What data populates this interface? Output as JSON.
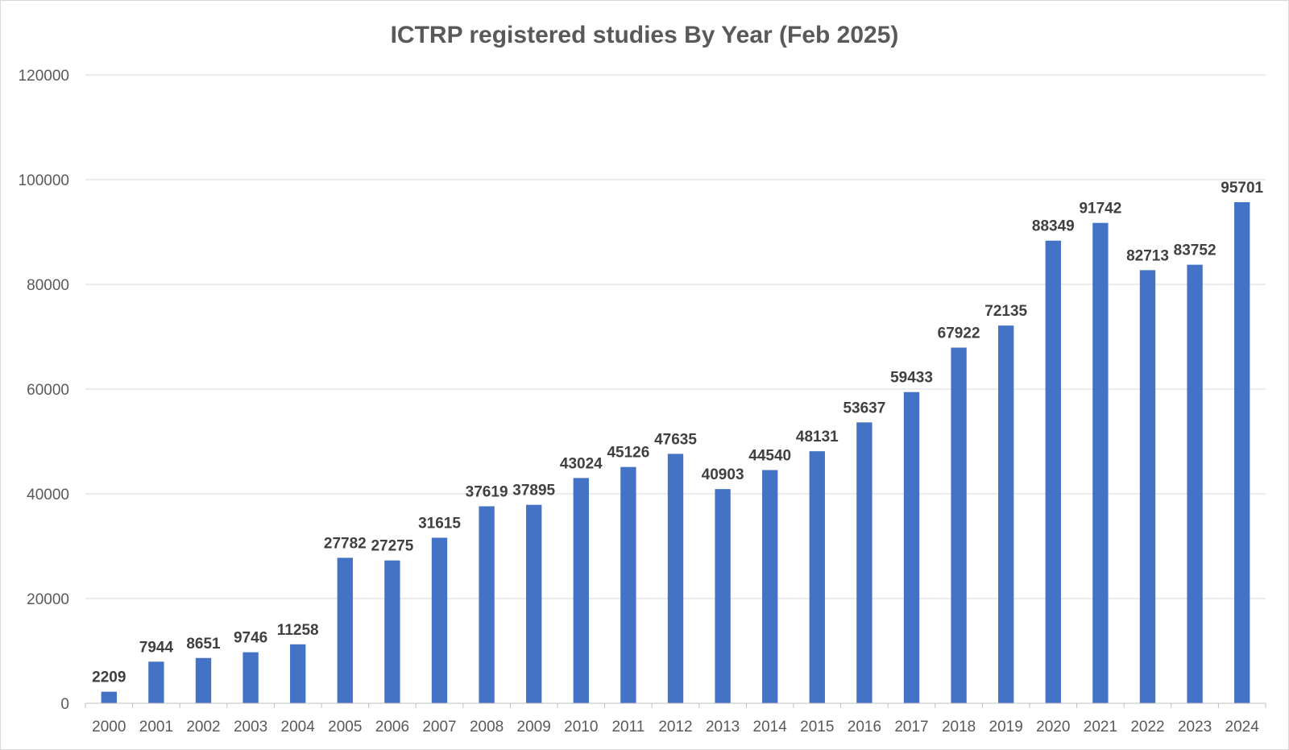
{
  "chart_data": {
    "type": "bar",
    "title": "ICTRP registered studies By Year (Feb 2025)",
    "xlabel": "",
    "ylabel": "",
    "ylim": [
      0,
      120000
    ],
    "yticks": [
      0,
      20000,
      40000,
      60000,
      80000,
      100000,
      120000
    ],
    "grid": true,
    "legend": "none",
    "bar_color": "#4472C4",
    "categories": [
      "2000",
      "2001",
      "2002",
      "2003",
      "2004",
      "2005",
      "2006",
      "2007",
      "2008",
      "2009",
      "2010",
      "2011",
      "2012",
      "2013",
      "2014",
      "2015",
      "2016",
      "2017",
      "2018",
      "2019",
      "2020",
      "2021",
      "2022",
      "2023",
      "2024"
    ],
    "values": [
      2209,
      7944,
      8651,
      9746,
      11258,
      27782,
      27275,
      31615,
      37619,
      37895,
      43024,
      45126,
      47635,
      40903,
      44540,
      48131,
      53637,
      59433,
      67922,
      72135,
      88349,
      91742,
      82713,
      83752,
      95701
    ]
  }
}
